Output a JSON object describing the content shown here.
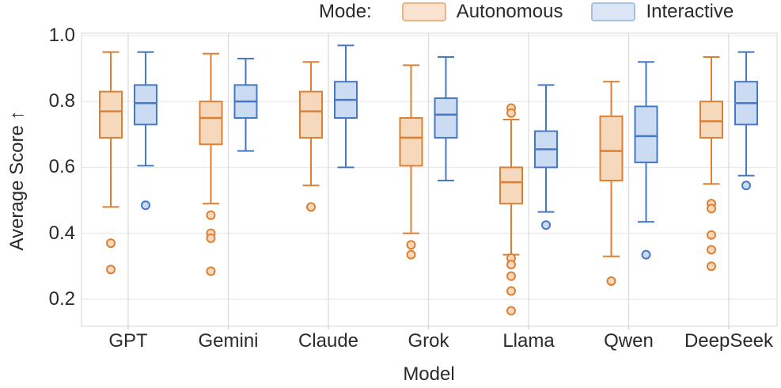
{
  "chart_data": {
    "type": "box",
    "title": "",
    "legend_title": "Mode:",
    "legend_position": "top-center",
    "xlabel": "Model",
    "ylabel": "Average Score ↑",
    "categories": [
      "GPT",
      "Gemini",
      "Claude",
      "Grok",
      "Llama",
      "Qwen",
      "DeepSeek"
    ],
    "ylim": [
      0.118,
      1.007
    ],
    "yticks": [
      1.0,
      0.8,
      0.6,
      0.4,
      0.2
    ],
    "grid": true,
    "series": [
      {
        "name": "Autonomous",
        "line_color": "#dd8034",
        "fill_color": "#f6d8bd",
        "boxes": [
          {
            "category": "GPT",
            "whisker_low": 0.48,
            "q1": 0.69,
            "median": 0.77,
            "q3": 0.83,
            "whisker_high": 0.95,
            "outliers": [
              0.37,
              0.29
            ]
          },
          {
            "category": "Gemini",
            "whisker_low": 0.49,
            "q1": 0.67,
            "median": 0.75,
            "q3": 0.8,
            "whisker_high": 0.945,
            "outliers": [
              0.455,
              0.4,
              0.385,
              0.285
            ]
          },
          {
            "category": "Claude",
            "whisker_low": 0.545,
            "q1": 0.69,
            "median": 0.77,
            "q3": 0.83,
            "whisker_high": 0.92,
            "outliers": [
              0.48
            ]
          },
          {
            "category": "Grok",
            "whisker_low": 0.4,
            "q1": 0.605,
            "median": 0.69,
            "q3": 0.75,
            "whisker_high": 0.91,
            "outliers": [
              0.365,
              0.335
            ]
          },
          {
            "category": "Llama",
            "whisker_low": 0.335,
            "q1": 0.49,
            "median": 0.555,
            "q3": 0.6,
            "whisker_high": 0.745,
            "outliers": [
              0.78,
              0.765,
              0.325,
              0.305,
              0.27,
              0.225,
              0.165
            ]
          },
          {
            "category": "Qwen",
            "whisker_low": 0.33,
            "q1": 0.56,
            "median": 0.65,
            "q3": 0.755,
            "whisker_high": 0.86,
            "outliers": [
              0.255
            ]
          },
          {
            "category": "DeepSeek",
            "whisker_low": 0.55,
            "q1": 0.69,
            "median": 0.74,
            "q3": 0.8,
            "whisker_high": 0.935,
            "outliers": [
              0.49,
              0.475,
              0.395,
              0.35,
              0.3
            ]
          }
        ]
      },
      {
        "name": "Interactive",
        "line_color": "#4678c8",
        "fill_color": "#cbdcf2",
        "boxes": [
          {
            "category": "GPT",
            "whisker_low": 0.605,
            "q1": 0.73,
            "median": 0.795,
            "q3": 0.85,
            "whisker_high": 0.95,
            "outliers": [
              0.485
            ]
          },
          {
            "category": "Gemini",
            "whisker_low": 0.65,
            "q1": 0.75,
            "median": 0.8,
            "q3": 0.85,
            "whisker_high": 0.93,
            "outliers": []
          },
          {
            "category": "Claude",
            "whisker_low": 0.6,
            "q1": 0.75,
            "median": 0.805,
            "q3": 0.86,
            "whisker_high": 0.97,
            "outliers": []
          },
          {
            "category": "Grok",
            "whisker_low": 0.56,
            "q1": 0.69,
            "median": 0.76,
            "q3": 0.81,
            "whisker_high": 0.935,
            "outliers": []
          },
          {
            "category": "Llama",
            "whisker_low": 0.465,
            "q1": 0.6,
            "median": 0.655,
            "q3": 0.71,
            "whisker_high": 0.85,
            "outliers": [
              0.425
            ]
          },
          {
            "category": "Qwen",
            "whisker_low": 0.435,
            "q1": 0.615,
            "median": 0.695,
            "q3": 0.785,
            "whisker_high": 0.92,
            "outliers": [
              0.335
            ]
          },
          {
            "category": "DeepSeek",
            "whisker_low": 0.575,
            "q1": 0.73,
            "median": 0.795,
            "q3": 0.86,
            "whisker_high": 0.95,
            "outliers": [
              0.545
            ]
          }
        ]
      }
    ]
  }
}
